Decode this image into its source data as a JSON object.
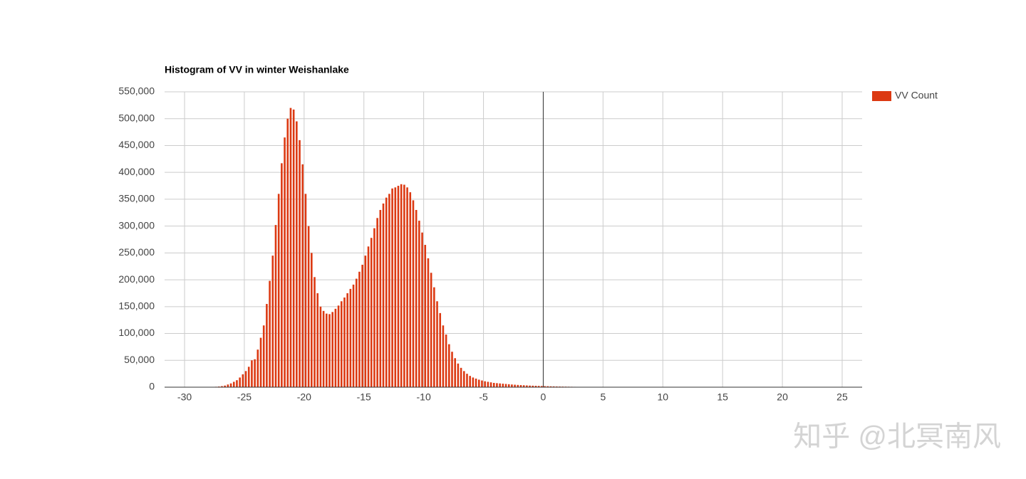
{
  "chart_data": {
    "type": "histogram",
    "title": "Histogram of VV in winter Weishanlake",
    "bins": [
      -28,
      -27.75,
      -27.5,
      -27.25,
      -27,
      -26.75,
      -26.5,
      -26.25,
      -26,
      -25.75,
      -25.5,
      -25.25,
      -25,
      -24.75,
      -24.5,
      -24.25,
      -24,
      -23.75,
      -23.5,
      -23.25,
      -23,
      -22.75,
      -22.5,
      -22.25,
      -22,
      -21.75,
      -21.5,
      -21.25,
      -21,
      -20.75,
      -20.5,
      -20.25,
      -20,
      -19.75,
      -19.5,
      -19.25,
      -19,
      -18.75,
      -18.5,
      -18.25,
      -18,
      -17.75,
      -17.5,
      -17.25,
      -17,
      -16.75,
      -16.5,
      -16.25,
      -16,
      -15.75,
      -15.5,
      -15.25,
      -15,
      -14.75,
      -14.5,
      -14.25,
      -14,
      -13.75,
      -13.5,
      -13.25,
      -13,
      -12.75,
      -12.5,
      -12.25,
      -12,
      -11.75,
      -11.5,
      -11.25,
      -11,
      -10.75,
      -10.5,
      -10.25,
      -10,
      -9.75,
      -9.5,
      -9.25,
      -9,
      -8.75,
      -8.5,
      -8.25,
      -8,
      -7.75,
      -7.5,
      -7.25,
      -7,
      -6.75,
      -6.5,
      -6.25,
      -6,
      -5.75,
      -5.5,
      -5.25,
      -5,
      -4.75,
      -4.5,
      -4.25,
      -4,
      -3.75,
      -3.5,
      -3.25,
      -3,
      -2.75,
      -2.5,
      -2.25,
      -2,
      -1.75,
      -1.5,
      -1.25,
      -1,
      -0.75,
      -0.5,
      -0.25,
      0,
      0.25,
      0.5,
      0.75,
      1,
      1.25,
      1.5,
      1.75,
      2,
      2.25,
      2.5,
      2.75,
      3,
      3.25,
      3.5,
      3.75,
      4,
      4.25,
      4.5,
      4.75,
      5
    ],
    "series": [
      {
        "name": "VV Count",
        "color": "#dc3912",
        "values": [
          300,
          500,
          800,
          1200,
          2000,
          3000,
          5000,
          7000,
          10000,
          13000,
          18000,
          24000,
          30000,
          38000,
          50000,
          52000,
          70000,
          92000,
          115000,
          155000,
          198000,
          245000,
          302000,
          360000,
          417000,
          465000,
          500000,
          520000,
          517000,
          495000,
          460000,
          415000,
          360000,
          300000,
          250000,
          205000,
          175000,
          150000,
          142000,
          137000,
          136000,
          140000,
          146000,
          152000,
          160000,
          167000,
          175000,
          183000,
          191000,
          202000,
          215000,
          228000,
          245000,
          262000,
          278000,
          296000,
          315000,
          330000,
          342000,
          353000,
          360000,
          370000,
          372000,
          375000,
          378000,
          377000,
          372000,
          363000,
          348000,
          330000,
          310000,
          288000,
          265000,
          240000,
          213000,
          186000,
          160000,
          138000,
          115000,
          98000,
          80000,
          66000,
          54000,
          44000,
          36000,
          30000,
          25000,
          21000,
          18000,
          16000,
          14000,
          12500,
          11000,
          10000,
          9000,
          8000,
          7500,
          7000,
          6500,
          6000,
          5500,
          5000,
          4600,
          4200,
          3900,
          3600,
          3300,
          3000,
          2800,
          2600,
          2400,
          2200,
          2000,
          1800,
          1600,
          1500,
          1300,
          1200,
          1100,
          1000,
          900,
          800,
          700,
          600,
          550,
          500,
          450,
          400,
          350,
          300,
          250,
          200
        ]
      }
    ],
    "xlim": [
      -31.67,
      26.67
    ],
    "xticks": [
      -30,
      -25,
      -20,
      -15,
      -10,
      -5,
      0,
      5,
      10,
      15,
      20,
      25
    ],
    "ylim": [
      0,
      550000
    ],
    "yticks": [
      0,
      {
        "value": 50000,
        "label": "50,000"
      },
      {
        "value": 100000,
        "label": "100,000"
      },
      {
        "value": 150000,
        "label": "150,000"
      },
      {
        "value": 200000,
        "label": "200,000"
      },
      {
        "value": 250000,
        "label": "250,000"
      },
      {
        "value": 300000,
        "label": "300,000"
      },
      {
        "value": 350000,
        "label": "350,000"
      },
      {
        "value": 400000,
        "label": "400,000"
      },
      {
        "value": 450000,
        "label": "450,000"
      },
      {
        "value": 500000,
        "label": "500,000"
      },
      {
        "value": 550000,
        "label": "550,000"
      }
    ],
    "grid": true,
    "legend": "right",
    "watermark": "知乎 @北冥南风"
  }
}
